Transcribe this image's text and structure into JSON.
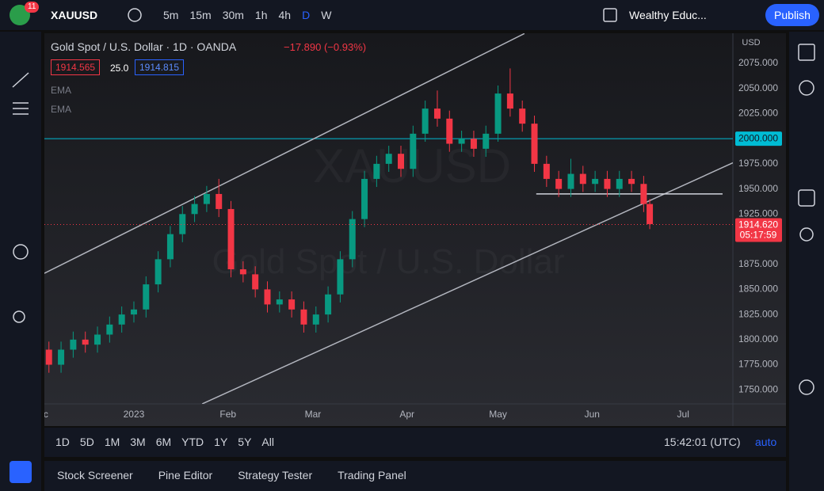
{
  "topbar": {
    "badge": "11",
    "symbol": "XAUUSD",
    "intervals": [
      "5m",
      "15m",
      "30m",
      "1h",
      "4h",
      "D",
      "W"
    ],
    "layout": "Wealthy Educ...",
    "publish": "Publish"
  },
  "legend": {
    "title": "Gold Spot / U.S. Dollar · 1D · OANDA",
    "change": "−17.890 (−0.93%)",
    "bid": "1914.565",
    "spread": "25.0",
    "ask": "1914.815",
    "indicators": [
      "EMA",
      "EMA"
    ]
  },
  "watermark": {
    "symbol": "XAUUSD",
    "description": "Gold Spot / U.S. Dollar"
  },
  "currency": "USD",
  "chart_data": {
    "type": "candlestick",
    "up_color": "#089981",
    "down_color": "#f23645",
    "x": [
      -28,
      -24,
      -20,
      -16,
      -12,
      -8,
      -4,
      0,
      4,
      8,
      12,
      16,
      20,
      24,
      28,
      32,
      36,
      40,
      44,
      48,
      52,
      56,
      60,
      64,
      68,
      72,
      76,
      80,
      84,
      88,
      92,
      96,
      100,
      104,
      108,
      112,
      116,
      120,
      124,
      128,
      132,
      136,
      140,
      144,
      148,
      152,
      156,
      160,
      164,
      168,
      170
    ],
    "open": [
      1790,
      1775,
      1790,
      1800,
      1795,
      1805,
      1815,
      1825,
      1830,
      1855,
      1880,
      1905,
      1925,
      1935,
      1945,
      1930,
      1870,
      1865,
      1850,
      1835,
      1840,
      1830,
      1815,
      1825,
      1845,
      1880,
      1920,
      1960,
      1975,
      1985,
      1970,
      2005,
      2030,
      2020,
      1995,
      2000,
      1990,
      2005,
      2045,
      2030,
      2015,
      1975,
      1960,
      1950,
      1965,
      1955,
      1960,
      1950,
      1960,
      1955,
      1935
    ],
    "high": [
      1798,
      1798,
      1808,
      1808,
      1813,
      1823,
      1833,
      1838,
      1863,
      1888,
      1913,
      1933,
      1943,
      1953,
      1960,
      1938,
      1878,
      1873,
      1858,
      1848,
      1848,
      1838,
      1833,
      1853,
      1888,
      1928,
      1968,
      1983,
      1993,
      1993,
      2013,
      2038,
      2048,
      2028,
      2008,
      2008,
      2013,
      2053,
      2070,
      2038,
      2023,
      1983,
      1968,
      1980,
      1973,
      1968,
      1968,
      1968,
      1968,
      1963,
      1940
    ],
    "low": [
      1767,
      1767,
      1782,
      1787,
      1787,
      1797,
      1807,
      1817,
      1822,
      1847,
      1872,
      1897,
      1917,
      1927,
      1922,
      1862,
      1857,
      1842,
      1827,
      1827,
      1822,
      1807,
      1807,
      1817,
      1837,
      1872,
      1912,
      1952,
      1967,
      1962,
      1962,
      1997,
      2012,
      1987,
      1987,
      1982,
      1982,
      1997,
      2022,
      2007,
      1967,
      1952,
      1942,
      1942,
      1947,
      1947,
      1942,
      1942,
      1947,
      1927,
      1910
    ],
    "close": [
      1775,
      1790,
      1800,
      1795,
      1805,
      1815,
      1825,
      1830,
      1855,
      1880,
      1905,
      1925,
      1935,
      1945,
      1930,
      1870,
      1865,
      1850,
      1835,
      1840,
      1830,
      1815,
      1825,
      1845,
      1880,
      1920,
      1960,
      1975,
      1985,
      1970,
      2005,
      2030,
      2020,
      1995,
      2000,
      1990,
      2005,
      2045,
      2030,
      2015,
      1975,
      1960,
      1950,
      1965,
      1955,
      1960,
      1950,
      1960,
      1955,
      1935,
      1915
    ],
    "xlim": [
      -29.5,
      197.4
    ],
    "xticks": [
      {
        "value": -31,
        "label": "Dec"
      },
      {
        "value": 0,
        "label": "2023"
      },
      {
        "value": 31,
        "label": "Feb"
      },
      {
        "value": 59,
        "label": "Mar"
      },
      {
        "value": 90,
        "label": "Apr"
      },
      {
        "value": 120,
        "label": "May"
      },
      {
        "value": 151,
        "label": "Jun"
      },
      {
        "value": 181,
        "label": "Jul"
      }
    ],
    "ylim": [
      1736,
      2105
    ],
    "yticks": [
      {
        "value": 2075,
        "label": "2075.000"
      },
      {
        "value": 2050,
        "label": "2050.000"
      },
      {
        "value": 2025,
        "label": "2025.000"
      },
      {
        "value": 1975,
        "label": "1975.000"
      },
      {
        "value": 1950,
        "label": "1950.000"
      },
      {
        "value": 1925,
        "label": "1925.000"
      },
      {
        "value": 1875,
        "label": "1875.000"
      },
      {
        "value": 1850,
        "label": "1850.000"
      },
      {
        "value": 1825,
        "label": "1825.000"
      },
      {
        "value": 1800,
        "label": "1800.000"
      },
      {
        "value": 1775,
        "label": "1775.000"
      },
      {
        "value": 1750,
        "label": "1750.000"
      }
    ],
    "grid": false,
    "price_levels": [
      {
        "value": 2000,
        "label": "2000.000",
        "color": "#00bcd4"
      }
    ],
    "last": {
      "value": 1914.62,
      "label": "1914.620",
      "countdown": "05:17:59",
      "color": "#f23645"
    },
    "trendlines": [
      {
        "x": [
          -29.5,
          128.7
        ],
        "y": [
          1866,
          2104.7
        ],
        "color": "#b2b5be"
      },
      {
        "x": [
          22.5,
          197.4
        ],
        "y": [
          1736,
          1976
        ],
        "color": "#b2b5be"
      },
      {
        "x": [
          132.6,
          194
        ],
        "y": [
          1945,
          1945
        ],
        "color": "#d1d4dc"
      }
    ]
  },
  "ranges": [
    "1D",
    "5D",
    "1M",
    "3M",
    "6M",
    "YTD",
    "1Y",
    "5Y",
    "All"
  ],
  "clock": "15:42:01 (UTC)",
  "scale_mode": "auto",
  "panels": [
    "Stock Screener",
    "Pine Editor",
    "Strategy Tester",
    "Trading Panel"
  ]
}
